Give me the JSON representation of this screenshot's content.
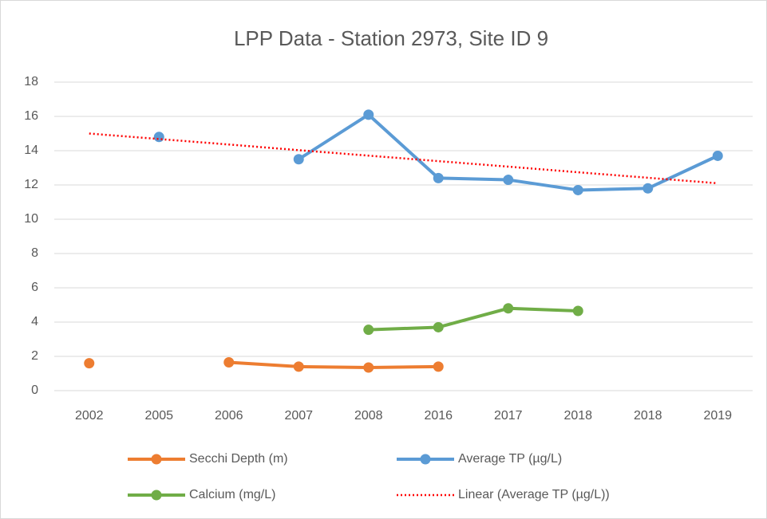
{
  "chart_data": {
    "type": "line",
    "title": "LPP Data - Station 2973, Site ID 9",
    "categories": [
      "2002",
      "2005",
      "2006",
      "2007",
      "2008",
      "2016",
      "2017",
      "2018",
      "2018",
      "2019"
    ],
    "series": [
      {
        "name": "Secchi Depth (m)",
        "color": "#ed7d31",
        "values": [
          1.6,
          null,
          1.65,
          1.4,
          1.35,
          1.4,
          null,
          null,
          null,
          null
        ]
      },
      {
        "name": "Average TP (µg/L)",
        "color": "#5b9bd5",
        "values": [
          null,
          14.8,
          null,
          13.5,
          16.1,
          12.4,
          12.3,
          11.7,
          11.8,
          13.7
        ]
      },
      {
        "name": "Calcium (mg/L)",
        "color": "#70ad47",
        "values": [
          null,
          null,
          null,
          null,
          3.55,
          3.7,
          4.8,
          4.65,
          null,
          null
        ]
      },
      {
        "name": "Linear (Average TP (µg/L))",
        "color": "#ff0000",
        "style": "dotted",
        "values": [
          15.0,
          14.68,
          14.36,
          14.03,
          13.71,
          13.39,
          13.07,
          12.74,
          12.42,
          12.1
        ]
      }
    ],
    "ylim": [
      0,
      18
    ],
    "yticks": [
      0,
      2,
      4,
      6,
      8,
      10,
      12,
      14,
      16,
      18
    ],
    "grid": true,
    "legend": "bottom"
  }
}
